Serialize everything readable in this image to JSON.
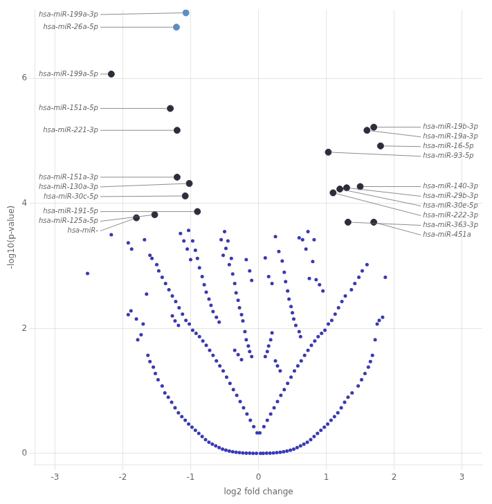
{
  "chart_data": {
    "type": "scatter",
    "xlabel": "log2 fold change",
    "ylabel": "-log10(p-value)",
    "xlim": [
      -3.3,
      3.3
    ],
    "ylim": [
      -0.18,
      7.1
    ],
    "xticks": [
      -3,
      -2,
      -1,
      0,
      1,
      2,
      3
    ],
    "yticks": [
      0,
      2,
      4,
      6
    ],
    "grid": true,
    "series": [
      {
        "color": "#3535cc",
        "x": [
          -2.52,
          -2.17,
          -1.92,
          -1.87,
          -1.8,
          -1.78,
          -1.73,
          -1.7,
          -1.68,
          -1.65,
          -1.63,
          -1.6,
          -1.6,
          -1.57,
          -1.55,
          -1.52,
          -1.5,
          -1.48,
          -1.47,
          -1.42,
          -1.42,
          -1.38,
          -1.37,
          -1.33,
          -1.32,
          -1.28,
          -1.27,
          -1.23,
          -1.22,
          -1.18,
          -1.17,
          -1.13,
          -1.12,
          -1.08,
          -1.07,
          -1.03,
          -1.02,
          -0.98,
          -0.97,
          -0.93,
          -0.92,
          -0.88,
          -0.87,
          -0.83,
          -0.82,
          -0.78,
          -0.77,
          -0.73,
          -0.72,
          -0.68,
          -0.67,
          -0.63,
          -0.62,
          -0.58,
          -0.57,
          -0.53,
          -0.52,
          -0.48,
          -0.47,
          -0.43,
          -0.42,
          -0.38,
          -0.37,
          -0.33,
          -0.32,
          -0.28,
          -0.27,
          -0.23,
          -0.22,
          -0.18,
          -0.17,
          -0.13,
          -0.12,
          -0.08,
          -0.07,
          -0.03,
          -0.02,
          0.02,
          0.03,
          0.07,
          0.08,
          0.12,
          0.13,
          0.17,
          0.18,
          0.22,
          0.23,
          0.27,
          0.28,
          0.32,
          0.33,
          0.37,
          0.38,
          0.42,
          0.43,
          0.47,
          0.48,
          0.52,
          0.53,
          0.57,
          0.58,
          0.62,
          0.63,
          0.67,
          0.68,
          0.72,
          0.73,
          0.77,
          0.78,
          0.82,
          0.83,
          0.87,
          0.88,
          0.92,
          0.93,
          0.97,
          0.98,
          1.02,
          1.03,
          1.07,
          1.08,
          1.12,
          1.13,
          1.17,
          1.18,
          1.22,
          1.23,
          1.27,
          1.28,
          1.32,
          1.37,
          1.38,
          1.42,
          1.47,
          1.48,
          1.52,
          1.53,
          1.57,
          1.6,
          1.62,
          1.65,
          1.68,
          1.72,
          1.75,
          1.78,
          1.83,
          1.87,
          -0.55,
          -0.52,
          -0.5,
          -0.48,
          -0.45,
          -0.43,
          -0.4,
          -0.38,
          -0.35,
          -0.33,
          -0.3,
          -0.28,
          -0.25,
          -0.23,
          -0.18,
          -0.13,
          -0.1,
          0.1,
          0.15,
          0.2,
          0.25,
          0.3,
          0.35,
          0.38,
          0.4,
          0.43,
          0.45,
          0.48,
          0.5,
          0.52,
          0.55,
          0.6,
          0.62,
          0.65,
          0.7,
          0.73,
          0.75,
          0.8,
          0.82,
          -1.15,
          -1.1,
          -1.05,
          -1.03,
          -1.0,
          -0.97,
          -0.93,
          -0.9,
          -0.87,
          -0.83,
          -0.8,
          -0.77,
          -0.73,
          -0.7,
          -0.67,
          -0.62,
          -0.58,
          -1.27,
          -1.23,
          -1.18,
          0.6,
          0.85,
          0.9,
          0.95,
          -0.2,
          -0.18,
          -0.15,
          -0.13,
          -0.1,
          0.1,
          0.13,
          0.15,
          0.18,
          0.2,
          -0.35,
          -0.3,
          -0.25,
          0.25,
          0.28,
          0.32,
          -1.92,
          -1.88
        ],
        "values": [
          2.88,
          3.5,
          3.37,
          3.27,
          2.15,
          1.82,
          1.9,
          2.07,
          3.42,
          2.55,
          1.57,
          1.47,
          3.17,
          3.12,
          1.38,
          1.28,
          3.02,
          1.18,
          2.92,
          1.08,
          2.82,
          0.97,
          2.72,
          0.9,
          2.62,
          0.82,
          2.52,
          0.73,
          2.43,
          0.65,
          2.33,
          0.59,
          2.23,
          0.53,
          2.13,
          0.47,
          2.07,
          0.42,
          1.97,
          0.37,
          1.92,
          0.32,
          1.87,
          0.27,
          1.8,
          0.22,
          1.73,
          0.18,
          1.65,
          0.15,
          1.57,
          0.12,
          1.48,
          0.093,
          1.4,
          0.07,
          1.32,
          0.053,
          1.22,
          0.038,
          1.12,
          0.028,
          1.02,
          0.02,
          0.93,
          0.014,
          0.83,
          0.009,
          0.73,
          0.006,
          0.63,
          0.004,
          0.53,
          0.002,
          0.43,
          0.001,
          0.33,
          0.33,
          0.001,
          0.002,
          0.43,
          0.004,
          0.53,
          0.006,
          0.63,
          0.009,
          0.73,
          0.014,
          0.83,
          0.02,
          0.93,
          0.028,
          1.02,
          0.038,
          1.12,
          0.053,
          1.22,
          0.07,
          1.32,
          0.093,
          1.4,
          0.12,
          1.48,
          0.15,
          1.57,
          0.18,
          1.65,
          0.22,
          1.73,
          0.27,
          1.8,
          0.32,
          1.87,
          0.37,
          1.92,
          0.42,
          1.97,
          0.47,
          2.07,
          0.53,
          2.13,
          0.59,
          2.23,
          0.65,
          2.33,
          0.73,
          2.43,
          0.82,
          2.52,
          0.9,
          2.62,
          0.97,
          2.72,
          1.08,
          2.82,
          1.18,
          2.92,
          1.28,
          3.02,
          1.38,
          1.47,
          1.57,
          1.82,
          2.07,
          2.13,
          2.18,
          2.82,
          3.42,
          3.17,
          3.55,
          3.28,
          3.4,
          3.02,
          3.12,
          2.87,
          2.72,
          2.57,
          2.45,
          2.33,
          2.22,
          2.12,
          3.1,
          2.92,
          2.77,
          3.13,
          2.83,
          2.72,
          3.47,
          3.23,
          3.08,
          2.9,
          2.75,
          2.6,
          2.47,
          2.35,
          2.25,
          2.15,
          2.05,
          1.95,
          1.87,
          3.42,
          3.27,
          3.55,
          2.8,
          3.07,
          3.42,
          3.52,
          3.4,
          3.27,
          3.57,
          3.1,
          3.4,
          3.25,
          3.12,
          2.97,
          2.83,
          2.7,
          2.58,
          2.47,
          2.37,
          2.27,
          2.18,
          2.1,
          2.2,
          2.12,
          2.05,
          3.45,
          2.78,
          2.7,
          2.6,
          1.95,
          1.82,
          1.72,
          1.63,
          1.55,
          1.55,
          1.63,
          1.72,
          1.82,
          1.93,
          1.65,
          1.58,
          1.5,
          1.48,
          1.4,
          1.32,
          2.22,
          2.28
        ]
      },
      {
        "colors": [
          "#5b8ec4",
          "#5b8ec4",
          "#2d2d3d",
          "#2d2d3d",
          "#2d2d3d",
          "#2d2d3d",
          "#2d2d3d",
          "#2d2d3d",
          "#2d2d3d",
          "#2d2d3d",
          "#2d2d3d",
          "#2d2d3d",
          "#2d2d3d",
          "#2d2d3d",
          "#2d2d3d",
          "#2d2d3d",
          "#2d2d3d",
          "#2d2d3d",
          "#2d2d3d",
          "#2d2d3d",
          "#2d2d3d"
        ],
        "x": [
          -1.07,
          -1.21,
          -2.17,
          -1.3,
          -1.2,
          -1.2,
          -1.02,
          -1.08,
          -0.9,
          -1.53,
          -1.8,
          1.03,
          1.2,
          1.3,
          1.1,
          1.5,
          1.32,
          1.7,
          1.6,
          1.7,
          1.8
        ],
        "values": [
          7.05,
          6.82,
          6.07,
          5.52,
          5.17,
          4.42,
          4.32,
          4.12,
          3.87,
          3.82,
          3.77,
          4.82,
          4.23,
          4.25,
          4.17,
          4.27,
          3.7,
          3.7,
          5.17,
          5.22,
          4.92
        ],
        "labels": [
          "hsa-miR-199a-3p",
          "hsa-miR-26a-5p",
          "hsa-miR-199a-5p",
          "hsa-miR-151a-5p",
          "hsa-miR-221-3p",
          "hsa-miR-151a-3p",
          "hsa-miR-130a-3p",
          "hsa-miR-30c-5p",
          "hsa-miR-191-5p",
          "hsa-miR-125a-5p",
          "hsa-miR-",
          "hsa-miR-93-5p",
          "hsa-miR-30e-5p",
          "hsa-miR-29b-3p",
          "hsa-miR-222-3p",
          "hsa-miR-140-3p",
          "hsa-miR-363-3p",
          "hsa-miR-451a",
          "hsa-miR-19a-3p",
          "hsa-miR-19b-3p",
          "hsa-miR-16-5p"
        ]
      }
    ]
  }
}
